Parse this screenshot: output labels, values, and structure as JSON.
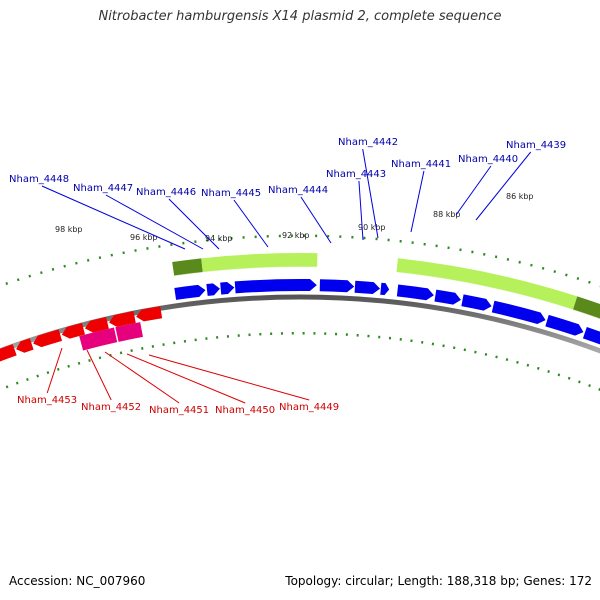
{
  "title": "Nitrobacter hamburgensis X14 plasmid 2, complete sequence",
  "footer": {
    "accession": "Accession: NC_007960",
    "topology": "Topology: circular; Length: 188,318 bp; Genes: 172"
  },
  "colors": {
    "forward_cds": "#0000ee",
    "reverse_cds": "#ee0000",
    "forward_feature_light": "#b6f05a",
    "forward_feature_dark": "#5a8a1c",
    "reverse_feature": "#e6007e",
    "backbone": "#888888",
    "ticks": "#2e8b22",
    "forward_label": "#0000aa",
    "reverse_label": "#cc0000"
  },
  "kbp_labels": [
    "98 kbp",
    "96 kbp",
    "94 kbp",
    "92 kbp",
    "90 kbp",
    "88 kbp",
    "86 kbp"
  ],
  "forward_genes": [
    "Nham_4448",
    "Nham_4447",
    "Nham_4446",
    "Nham_4445",
    "Nham_4444",
    "Nham_4443",
    "Nham_4442",
    "Nham_4441",
    "Nham_4440",
    "Nham_4439"
  ],
  "reverse_genes": [
    "Nham_4453",
    "Nham_4452",
    "Nham_4451",
    "Nham_4450",
    "Nham_4449"
  ]
}
